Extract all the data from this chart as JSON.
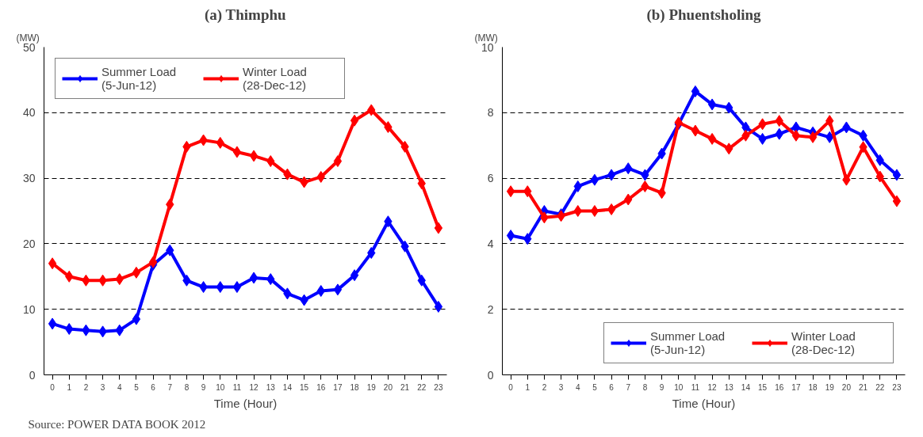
{
  "chart_data": [
    {
      "type": "line",
      "title": "(a) Thimphu",
      "ylabel": "(MW)",
      "xlabel": "Time (Hour)",
      "x": [
        0,
        1,
        2,
        3,
        4,
        5,
        6,
        7,
        8,
        9,
        10,
        11,
        12,
        13,
        14,
        15,
        16,
        17,
        18,
        19,
        20,
        21,
        22,
        23
      ],
      "xlim": [
        -0.5,
        23.5
      ],
      "xticks": [
        0,
        1,
        2,
        3,
        4,
        5,
        6,
        7,
        8,
        9,
        10,
        11,
        12,
        13,
        14,
        15,
        16,
        17,
        18,
        19,
        20,
        21,
        22,
        23
      ],
      "ylim": [
        0,
        50
      ],
      "yticks": [
        0,
        10,
        20,
        30,
        40,
        50
      ],
      "grid": "y",
      "legend": "top left",
      "marker": "diamond",
      "line_style": "solid",
      "series": [
        {
          "name": "Summer Load\n(5-Jun-12)",
          "color": "#0000ff",
          "values": [
            7.8,
            7.0,
            6.8,
            6.6,
            6.8,
            8.5,
            16.8,
            19.0,
            14.4,
            13.4,
            13.4,
            13.4,
            14.8,
            14.6,
            12.4,
            11.4,
            12.8,
            13.0,
            15.2,
            18.6,
            23.4,
            19.6,
            14.4,
            10.4
          ]
        },
        {
          "name": "Winter Load\n(28-Dec-12)",
          "color": "#ff0000",
          "values": [
            17.0,
            15.0,
            14.4,
            14.4,
            14.6,
            15.6,
            17.2,
            26.0,
            34.8,
            35.8,
            35.4,
            34.0,
            33.4,
            32.6,
            30.6,
            29.4,
            30.2,
            32.6,
            38.8,
            40.4,
            37.8,
            34.8,
            29.2,
            22.4
          ]
        }
      ],
      "annotations": [
        "Source: POWER DATA BOOK 2012"
      ]
    },
    {
      "type": "line",
      "title": "(b) Phuentsholing",
      "ylabel": "(MW)",
      "xlabel": "Time (Hour)",
      "x": [
        0,
        1,
        2,
        3,
        4,
        5,
        6,
        7,
        8,
        9,
        10,
        11,
        12,
        13,
        14,
        15,
        16,
        17,
        18,
        19,
        20,
        21,
        22,
        23
      ],
      "xlim": [
        -0.5,
        23.5
      ],
      "xticks": [
        0,
        1,
        2,
        3,
        4,
        5,
        6,
        7,
        8,
        9,
        10,
        11,
        12,
        13,
        14,
        15,
        16,
        17,
        18,
        19,
        20,
        21,
        22,
        23
      ],
      "ylim": [
        0,
        10
      ],
      "yticks": [
        0,
        2,
        4,
        6,
        8,
        10
      ],
      "grid": "y",
      "legend": "bottom right",
      "marker": "diamond",
      "line_style": "solid",
      "series": [
        {
          "name": "Summer Load\n(5-Jun-12)",
          "color": "#0000ff",
          "values": [
            4.25,
            4.15,
            5.0,
            4.9,
            5.75,
            5.95,
            6.1,
            6.3,
            6.1,
            6.75,
            7.65,
            8.65,
            8.25,
            8.15,
            7.55,
            7.2,
            7.35,
            7.55,
            7.4,
            7.25,
            7.55,
            7.3,
            6.55,
            6.1
          ]
        },
        {
          "name": "Winter Load\n(28-Dec-12)",
          "color": "#ff0000",
          "values": [
            5.6,
            5.6,
            4.8,
            4.85,
            5.0,
            5.0,
            5.05,
            5.35,
            5.75,
            5.55,
            7.7,
            7.45,
            7.2,
            6.9,
            7.3,
            7.65,
            7.75,
            7.3,
            7.25,
            7.75,
            5.95,
            6.95,
            6.05,
            5.3
          ]
        }
      ]
    }
  ]
}
